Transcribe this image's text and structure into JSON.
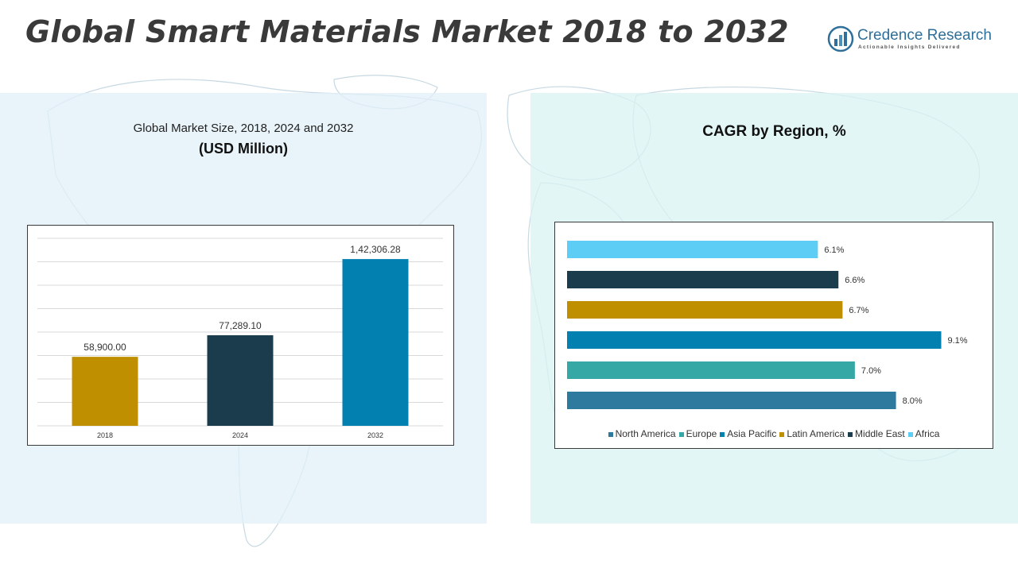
{
  "header": {
    "title": "Global Smart Materials Market 2018 to 2032",
    "logo_name": "Credence Research",
    "logo_tagline": "Actionable Insights Delivered"
  },
  "left_panel": {
    "title": "Global Market Size, 2018, 2024 and 2032",
    "subtitle": "(USD Million)"
  },
  "right_panel": {
    "title": "CAGR by Region, %"
  },
  "colors": {
    "gold": "#BF8F00",
    "navy": "#1B3C4D",
    "blue": "#0280B0",
    "teal": "#35A7A5",
    "steel": "#2E7A9E",
    "sky": "#5DCDF5"
  },
  "chart_data": [
    {
      "type": "bar",
      "categories": [
        "2018",
        "2024",
        "2032"
      ],
      "values": [
        58900.0,
        77289.1,
        142306.28
      ],
      "value_labels": [
        "58,900.00",
        "77,289.10",
        "1,42,306.28"
      ],
      "colors": [
        "#BF8F00",
        "#1B3C4D",
        "#0280B0"
      ],
      "ylim": [
        0,
        160000
      ],
      "grid": true
    },
    {
      "type": "bar",
      "orientation": "horizontal",
      "categories": [
        "Africa",
        "Middle East",
        "Latin America",
        "Asia Pacific",
        "Europe",
        "North America"
      ],
      "values": [
        6.1,
        6.6,
        6.7,
        9.1,
        7.0,
        8.0
      ],
      "value_labels": [
        "6.1%",
        "6.6%",
        "6.7%",
        "9.1%",
        "7.0%",
        "8.0%"
      ],
      "colors": [
        "#5DCDF5",
        "#1B3C4D",
        "#BF8F00",
        "#0280B0",
        "#35A7A5",
        "#2E7A9E"
      ],
      "legend": [
        {
          "label": "North America",
          "color": "#2E7A9E"
        },
        {
          "label": "Europe",
          "color": "#35A7A5"
        },
        {
          "label": "Asia Pacific",
          "color": "#0280B0"
        },
        {
          "label": "Latin America",
          "color": "#BF8F00"
        },
        {
          "label": "Middle East",
          "color": "#1B3C4D"
        },
        {
          "label": "Africa",
          "color": "#5DCDF5"
        }
      ],
      "legend_position": "bottom",
      "xlim": [
        0,
        10
      ]
    }
  ]
}
